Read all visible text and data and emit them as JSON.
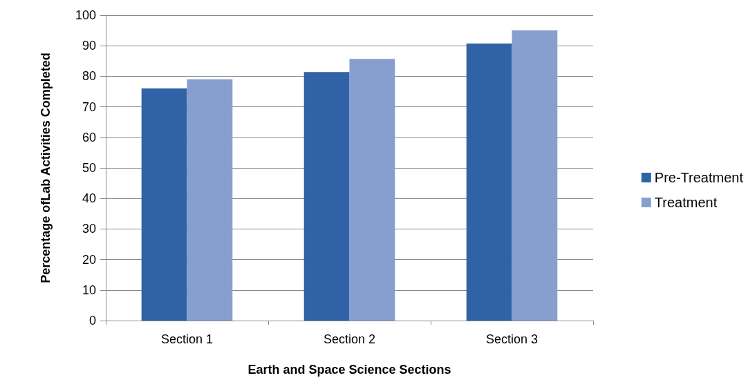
{
  "chart_data": {
    "type": "bar",
    "xlabel": "Earth and Space Science Sections",
    "ylabel": "Percentage ofLab Activities Completed",
    "categories": [
      "Section 1",
      "Section 2",
      "Section 3"
    ],
    "series": [
      {
        "name": "Pre-Treatment",
        "color": "#2f62a6",
        "values": [
          76,
          81.4,
          90.7
        ]
      },
      {
        "name": "Treatment",
        "color": "#869fcf",
        "values": [
          79,
          85.7,
          95
        ]
      }
    ],
    "ylim": [
      0,
      100
    ],
    "yticks": [
      0,
      10,
      20,
      30,
      40,
      50,
      60,
      70,
      80,
      90,
      100
    ],
    "grid": "y",
    "legend": "right"
  }
}
